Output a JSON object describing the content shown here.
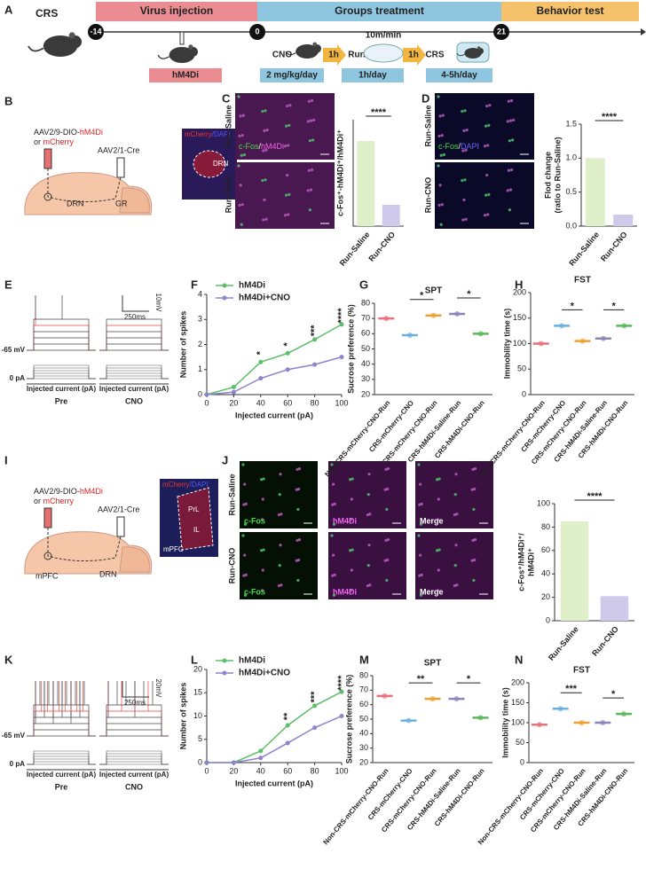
{
  "panel_labels": [
    "A",
    "B",
    "C",
    "D",
    "E",
    "F",
    "G",
    "H",
    "I",
    "J",
    "K",
    "L",
    "M",
    "N"
  ],
  "timeline": {
    "title": "CRS",
    "days": [
      "-14",
      "0",
      "21"
    ],
    "phases": [
      "Virus injection",
      "Groups treatment",
      "Behavior test"
    ],
    "virus": "hM4Di",
    "steps": [
      "CNO",
      "1h",
      "Run",
      "1h",
      "CRS"
    ],
    "speed": "10m/min",
    "doses": [
      "2 mg/kg/day",
      "1h/day",
      "4-5h/day"
    ]
  },
  "schematic_b": {
    "virus1": "AAV2/9-DIO-",
    "construct": "hM4Di",
    "or": "or ",
    "alt": "mCherry",
    "virus2": "AAV2/1-Cre",
    "regions": [
      "DRN",
      "GR"
    ],
    "stain": [
      "mCherry",
      "/DAPI"
    ],
    "region_label": "DRN"
  },
  "images_c": {
    "rows": [
      "Run-Saline",
      "Run-CNO"
    ],
    "stain": [
      "c-Fos",
      "/",
      "hM4Di"
    ]
  },
  "images_d": {
    "rows": [
      "Run-Saline",
      "Run-CNO"
    ],
    "stain": [
      "c-Fos",
      "/",
      "DAPI"
    ]
  },
  "traces_e": {
    "scale": [
      "10mV",
      "250ms"
    ],
    "rest": "-65 mV",
    "zero": "0 pA",
    "x_label": "Injected current (pA)",
    "conditions": [
      "Pre",
      "CNO"
    ]
  },
  "schematic_i": {
    "virus1": "AAV2/9-DIO-",
    "construct": "hM4Di",
    "or": "or ",
    "alt": "mCherry",
    "virus2": "AAV2/1-Cre",
    "regions": [
      "mPFC",
      "DRN"
    ],
    "stain": [
      "mCherry",
      "/DAPI"
    ],
    "subregions": [
      "PrL",
      "IL"
    ],
    "region_label": "mPFC"
  },
  "images_j": {
    "rows": [
      "Run-Saline",
      "Run-CNO"
    ],
    "columns": [
      "c-Fos",
      "hM4Di",
      "Merge"
    ]
  },
  "traces_k": {
    "scale": [
      "20mV",
      "250ms"
    ],
    "rest": "-65 mV",
    "zero": "0 pA",
    "x_label": "Injected current (pA)",
    "conditions": [
      "Pre",
      "CNO"
    ]
  },
  "chart_data": [
    {
      "type": "bar",
      "y_label": [
        "c-Fos⁺-hM4Di⁺/hM4Di⁺"
      ],
      "categories": [
        "Run-Saline",
        "Run-CNO"
      ],
      "values": [
        0.8,
        0.2
      ],
      "colors": [
        "#deefc9",
        "#cfc9ea"
      ],
      "ylim": [
        0,
        1
      ],
      "annotations": [
        "****"
      ]
    },
    {
      "type": "bar",
      "y_label": [
        "Flod change",
        "(ratio to Run-Saline)"
      ],
      "categories": [
        "Run-Saline",
        "Run-CNO"
      ],
      "values": [
        1.0,
        0.17
      ],
      "colors": [
        "#deefc9",
        "#cfc9ea"
      ],
      "ylim": [
        0,
        1.5
      ],
      "yticks": [
        {
          "value": 0,
          "label": "0.0"
        },
        0.5,
        {
          "value": 1,
          "label": "1.0"
        },
        1.5
      ],
      "annotations": [
        "****"
      ]
    },
    {
      "type": "line",
      "x_label": "Injected current (pA)",
      "y_label": [
        "Number of spikes"
      ],
      "x": [
        0,
        20,
        40,
        60,
        80,
        100
      ],
      "series": [
        {
          "name": "hM4Di",
          "color": "#5cbf6a",
          "values": [
            0,
            0.3,
            1.3,
            1.65,
            2.2,
            2.8
          ]
        },
        {
          "name": "hM4Di+CNO",
          "color": "#8c84cc",
          "values": [
            0,
            0.1,
            0.65,
            1.0,
            1.2,
            1.5
          ]
        }
      ],
      "xlim": [
        0,
        100
      ],
      "ylim": [
        0,
        4
      ],
      "xticks": [
        0,
        20,
        40,
        60,
        80,
        100
      ],
      "yticks": [
        0,
        1,
        2,
        3,
        4
      ],
      "annotations": [
        {
          "x": 40,
          "text": "*"
        },
        {
          "x": 60,
          "text": "*"
        },
        {
          "x": 80,
          "text": "***"
        },
        {
          "x": 100,
          "text": "****"
        }
      ]
    },
    {
      "type": "strip",
      "title": "SPT",
      "y_label": [
        "Sucrose preference (%)"
      ],
      "categories": [
        "Non-CRS-mCherry-CNO-Run",
        "CRS-mCherry-CNO",
        "CRS-mCherry-CNO-Run",
        "CRS-hM4Di-Saline-Run",
        "CRS-hM4Di-CNO-Run"
      ],
      "values": [
        70,
        59,
        72,
        73,
        60
      ],
      "colors": [
        "#e8707a",
        "#6ab0e0",
        "#f0a030",
        "#8a86b8",
        "#5cb85c"
      ],
      "ylim": [
        20,
        80
      ],
      "yticks": [
        20,
        30,
        40,
        50,
        60,
        70,
        80
      ],
      "annotations": [
        "*",
        "*"
      ]
    },
    {
      "type": "strip",
      "title": "FST",
      "y_label": [
        "Immobility time (s)"
      ],
      "categories": [
        "Non-CRS-mCherry-CNO-Run",
        "CRS-mCherry-CNO",
        "CRS-mCherry-CNO-Run",
        "CRS-hM4Di-Saline-Run",
        "CRS-hM4Di-CNO-Run"
      ],
      "values": [
        100,
        135,
        105,
        110,
        135
      ],
      "colors": [
        "#e8707a",
        "#6ab0e0",
        "#f0a030",
        "#8a86b8",
        "#5cb85c"
      ],
      "ylim": [
        0,
        200
      ],
      "yticks": [
        0,
        50,
        100,
        150,
        200
      ],
      "annotations": [
        "*",
        "*"
      ]
    },
    {
      "type": "bar",
      "y_label": [
        "c-Fos⁺/hM4Di⁺/",
        "hM4Di⁺"
      ],
      "categories": [
        "Run-Saline",
        "Run-CNO"
      ],
      "values": [
        85,
        21
      ],
      "colors": [
        "#deefc9",
        "#cfc9ea"
      ],
      "ylim": [
        0,
        100
      ],
      "yticks": [
        0,
        20,
        40,
        60,
        80,
        100
      ],
      "annotations": [
        "****"
      ]
    },
    {
      "type": "line",
      "x_label": "Injected current (pA)",
      "y_label": [
        "Number of spikes"
      ],
      "x": [
        0,
        20,
        40,
        60,
        80,
        100
      ],
      "series": [
        {
          "name": "hM4Di",
          "color": "#5cbf6a",
          "values": [
            0,
            0,
            2.5,
            8,
            12.2,
            15.2
          ]
        },
        {
          "name": "hM4Di+CNO",
          "color": "#8c84cc",
          "values": [
            0,
            0,
            1,
            4.2,
            7.5,
            10
          ]
        }
      ],
      "xlim": [
        0,
        100
      ],
      "ylim": [
        0,
        20
      ],
      "xticks": [
        0,
        20,
        40,
        60,
        80,
        100
      ],
      "yticks": [
        0,
        5,
        10,
        15,
        20
      ],
      "annotations": [
        {
          "x": 60,
          "text": "**"
        },
        {
          "x": 80,
          "text": "***"
        },
        {
          "x": 100,
          "text": "****"
        }
      ]
    },
    {
      "type": "strip",
      "title": "SPT",
      "y_label": [
        "Sucrose preference (%)"
      ],
      "categories": [
        "Non-CRS-mCherry-CNO-Run",
        "CRS-mCherry-CNO",
        "CRS-mCherry-CNO-Run",
        "CRS-hM4Di-Saline-Run",
        "CRS-hM4Di-CNO-Run"
      ],
      "values": [
        66,
        49,
        64,
        64,
        51
      ],
      "colors": [
        "#e8707a",
        "#6ab0e0",
        "#f0a030",
        "#8a86b8",
        "#5cb85c"
      ],
      "ylim": [
        20,
        80
      ],
      "yticks": [
        20,
        30,
        40,
        50,
        60,
        70,
        80
      ],
      "annotations": [
        "**",
        "*"
      ]
    },
    {
      "type": "strip",
      "title": "FST",
      "y_label": [
        "Immobility time (s)"
      ],
      "categories": [
        "Non-CRS-mCherry-CNO-Run",
        "CRS-mCherry-CNO",
        "CRS-mCherry-CNO-Run",
        "CRS-hM4Di-Saline-Run",
        "CRS-hM4Di-CNO-Run"
      ],
      "values": [
        95,
        135,
        100,
        100,
        122
      ],
      "colors": [
        "#e8707a",
        "#6ab0e0",
        "#f0a030",
        "#8a86b8",
        "#5cb85c"
      ],
      "ylim": [
        0,
        200
      ],
      "yticks": [
        0,
        50,
        100,
        150,
        200
      ],
      "annotations": [
        "***",
        "*"
      ]
    }
  ]
}
